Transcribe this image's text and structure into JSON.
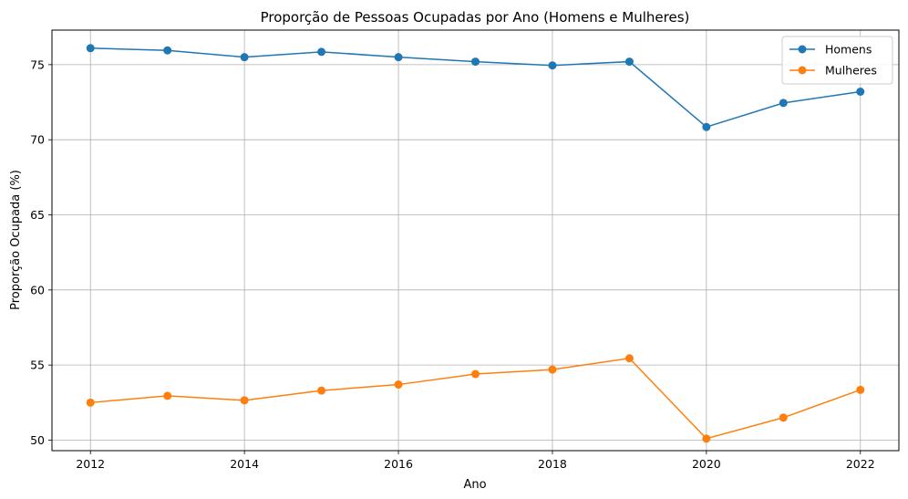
{
  "chart_data": {
    "type": "line",
    "title": "Proporção de Pessoas Ocupadas por Ano (Homens e Mulheres)",
    "xlabel": "Ano",
    "ylabel": "Proporção Ocupada (%)",
    "x": [
      2012,
      2013,
      2014,
      2015,
      2016,
      2017,
      2018,
      2019,
      2020,
      2021,
      2022
    ],
    "xticks": [
      "2012",
      "2014",
      "2016",
      "2018",
      "2020",
      "2022"
    ],
    "yticks": [
      "50",
      "55",
      "60",
      "65",
      "70",
      "75"
    ],
    "xlim": [
      2011.5,
      2022.5
    ],
    "ylim": [
      49.3,
      77.3
    ],
    "grid": true,
    "legend_position": "top-right",
    "series": [
      {
        "name": "Homens",
        "color": "#1f77b4",
        "values": [
          76.1,
          75.95,
          75.5,
          75.85,
          75.5,
          75.2,
          74.95,
          75.2,
          70.85,
          72.45,
          73.2
        ]
      },
      {
        "name": "Mulheres",
        "color": "#ff7f0e",
        "values": [
          52.5,
          52.95,
          52.65,
          53.3,
          53.7,
          54.4,
          54.7,
          55.45,
          50.1,
          51.5,
          53.35
        ]
      }
    ]
  }
}
